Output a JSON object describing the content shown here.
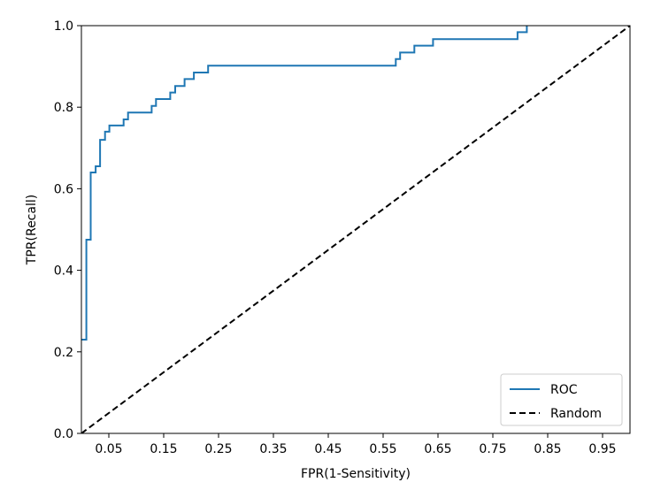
{
  "chart_data": {
    "type": "line",
    "title": "",
    "xlabel": "FPR(1-Sensitivity)",
    "ylabel": "TPR(Recall)",
    "xlim": [
      0.0,
      1.0
    ],
    "ylim": [
      0.0,
      1.0
    ],
    "x_ticks": [
      0.05,
      0.15,
      0.25,
      0.35,
      0.45,
      0.55,
      0.65,
      0.75,
      0.85,
      0.95
    ],
    "x_tick_labels": [
      "0.05",
      "0.15",
      "0.25",
      "0.35",
      "0.45",
      "0.55",
      "0.65",
      "0.75",
      "0.85",
      "0.95"
    ],
    "y_ticks": [
      0.0,
      0.2,
      0.4,
      0.6,
      0.8,
      1.0
    ],
    "y_tick_labels": [
      "0.0",
      "0.2",
      "0.4",
      "0.6",
      "0.8",
      "1.0"
    ],
    "grid": false,
    "legend_position": "lower-right",
    "series": [
      {
        "name": "ROC",
        "color": "#1f77b4",
        "line_style": "solid",
        "x": [
          0.0,
          0.009,
          0.009,
          0.017,
          0.017,
          0.026,
          0.026,
          0.034,
          0.034,
          0.043,
          0.043,
          0.051,
          0.051,
          0.077,
          0.077,
          0.085,
          0.085,
          0.128,
          0.128,
          0.136,
          0.136,
          0.162,
          0.162,
          0.171,
          0.171,
          0.188,
          0.188,
          0.205,
          0.205,
          0.231,
          0.231,
          0.573,
          0.573,
          0.581,
          0.581,
          0.607,
          0.607,
          0.624,
          0.624,
          0.641,
          0.641,
          0.795,
          0.795,
          0.812,
          0.812
        ],
        "y": [
          0.23,
          0.23,
          0.475,
          0.475,
          0.64,
          0.64,
          0.655,
          0.655,
          0.72,
          0.72,
          0.74,
          0.74,
          0.755,
          0.755,
          0.77,
          0.77,
          0.787,
          0.787,
          0.803,
          0.803,
          0.82,
          0.82,
          0.836,
          0.836,
          0.852,
          0.852,
          0.869,
          0.869,
          0.885,
          0.885,
          0.902,
          0.902,
          0.918,
          0.918,
          0.934,
          0.934,
          0.951,
          0.951,
          0.951,
          0.951,
          0.967,
          0.967,
          0.984,
          0.984,
          1.0
        ]
      },
      {
        "name": "Random",
        "color": "#000000",
        "line_style": "dashed",
        "x": [
          0.0,
          1.0
        ],
        "y": [
          0.0,
          1.0
        ]
      }
    ]
  }
}
